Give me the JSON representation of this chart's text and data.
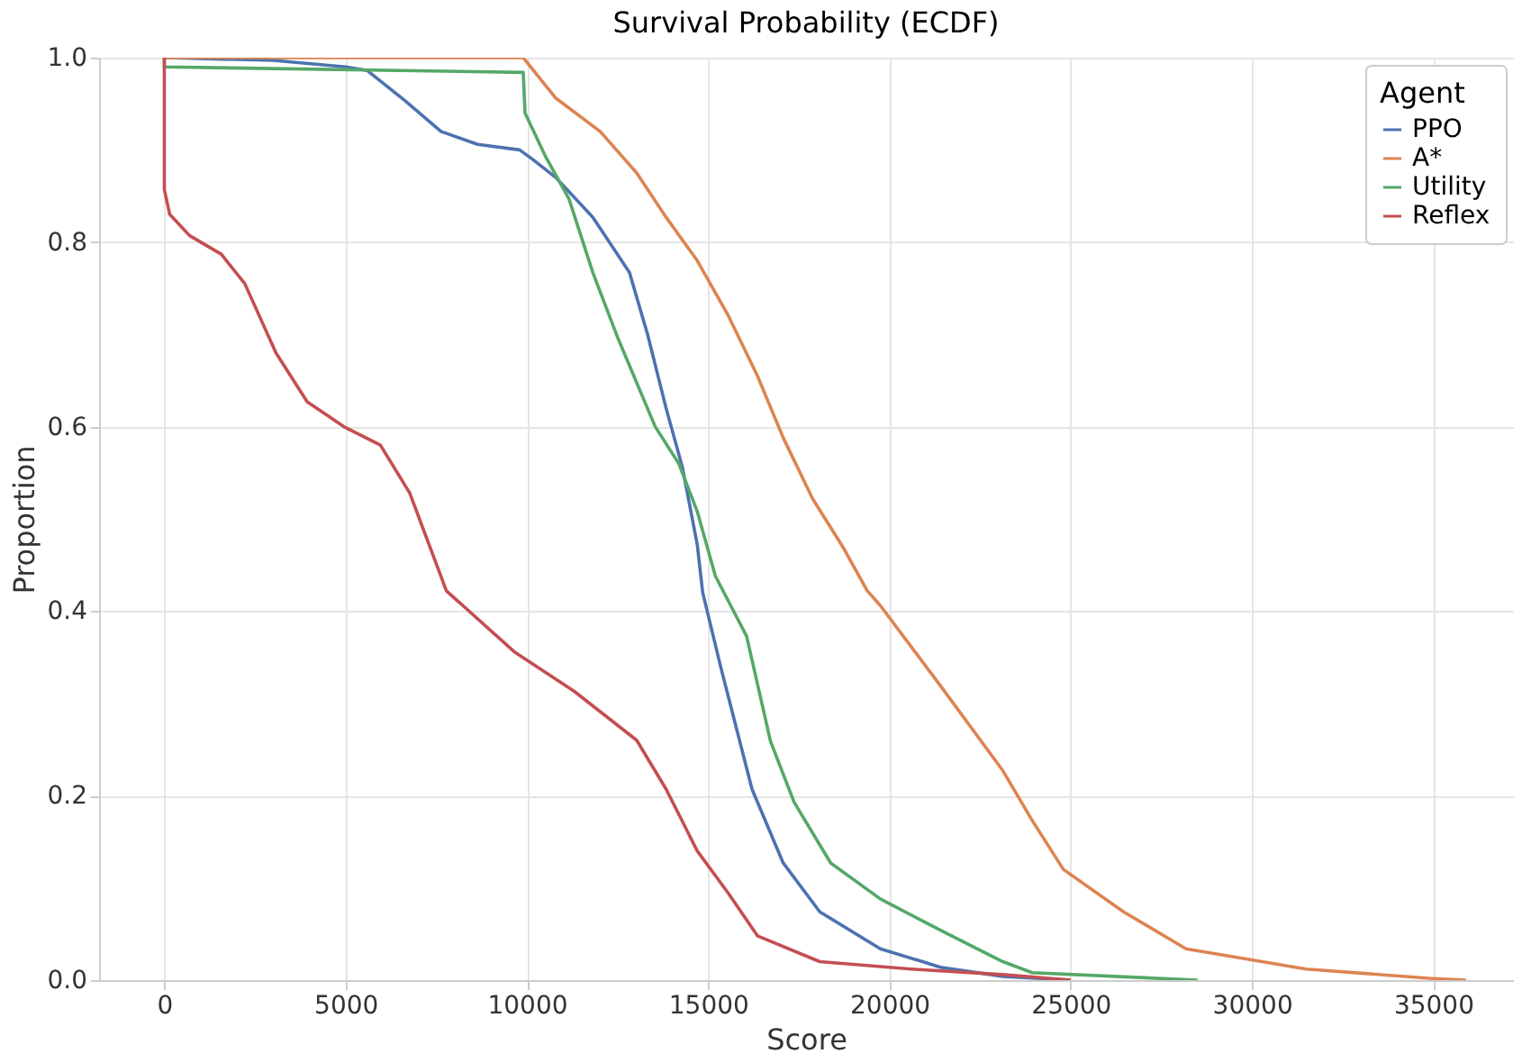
{
  "chart_data": {
    "type": "line",
    "title": "Survival Probability (ECDF)",
    "xlabel": "Score",
    "ylabel": "Proportion",
    "legend_title": "Agent",
    "legend": "top right",
    "grid": true,
    "xlim": [
      -1800,
      37200
    ],
    "ylim": [
      0,
      1
    ],
    "xticks": [
      0,
      5000,
      10000,
      15000,
      20000,
      25000,
      30000,
      35000
    ],
    "yticks": [
      {
        "value": 0,
        "label": "0.0"
      },
      {
        "value": 0.2,
        "label": "0.2"
      },
      {
        "value": 0.4,
        "label": "0.4"
      },
      {
        "value": 0.6,
        "label": "0.6"
      },
      {
        "value": 0.8,
        "label": "0.8"
      },
      {
        "value": 1,
        "label": "1.0"
      }
    ],
    "series": [
      {
        "name": "PPO",
        "color": "#4c72b0",
        "x": [
          0,
          3000,
          5000,
          5600,
          6620,
          7630,
          8640,
          9800,
          10150,
          10800,
          11820,
          12830,
          13330,
          13840,
          14290,
          14700,
          14850,
          15350,
          16210,
          17070,
          18080,
          19750,
          21410,
          23130,
          25000
        ],
        "values": [
          1.0,
          0.997,
          0.99,
          0.986,
          0.954,
          0.92,
          0.906,
          0.9,
          0.89,
          0.87,
          0.827,
          0.767,
          0.7,
          0.62,
          0.556,
          0.472,
          0.42,
          0.339,
          0.207,
          0.127,
          0.074,
          0.034,
          0.014,
          0.004,
          0.0
        ]
      },
      {
        "name": "A*",
        "color": "#dd8452",
        "x": [
          0,
          9900,
          10800,
          12020,
          13030,
          13840,
          14700,
          15560,
          16360,
          17070,
          17880,
          18740,
          19390,
          19750,
          21410,
          23130,
          23940,
          24800,
          26460,
          28180,
          31500,
          34900,
          35900
        ],
        "values": [
          1.0,
          1.0,
          0.956,
          0.92,
          0.875,
          0.827,
          0.78,
          0.72,
          0.655,
          0.588,
          0.522,
          0.468,
          0.422,
          0.406,
          0.319,
          0.227,
          0.173,
          0.12,
          0.074,
          0.034,
          0.012,
          0.002,
          0.0
        ]
      },
      {
        "name": "Utility",
        "color": "#55a868",
        "x": [
          0,
          0,
          9900,
          9950,
          10500,
          11160,
          11820,
          12520,
          13540,
          14190,
          14700,
          15200,
          16060,
          16720,
          17370,
          18380,
          19750,
          21410,
          23130,
          23940,
          28500
        ],
        "values": [
          1.0,
          0.99,
          0.984,
          0.94,
          0.894,
          0.847,
          0.767,
          0.695,
          0.6,
          0.56,
          0.508,
          0.438,
          0.373,
          0.259,
          0.193,
          0.127,
          0.088,
          0.054,
          0.02,
          0.008,
          0.0
        ]
      },
      {
        "name": "Reflex",
        "color": "#c44e52",
        "x": [
          0,
          0,
          150,
          700,
          1570,
          2220,
          3080,
          3940,
          4950,
          5960,
          6770,
          7780,
          9650,
          11310,
          13030,
          13840,
          14700,
          15560,
          16360,
          18080,
          20610,
          23130,
          25000
        ],
        "values": [
          1.0,
          0.857,
          0.83,
          0.807,
          0.787,
          0.755,
          0.68,
          0.627,
          0.6,
          0.58,
          0.528,
          0.422,
          0.356,
          0.313,
          0.26,
          0.207,
          0.14,
          0.094,
          0.048,
          0.02,
          0.012,
          0.006,
          0.0
        ]
      }
    ]
  }
}
